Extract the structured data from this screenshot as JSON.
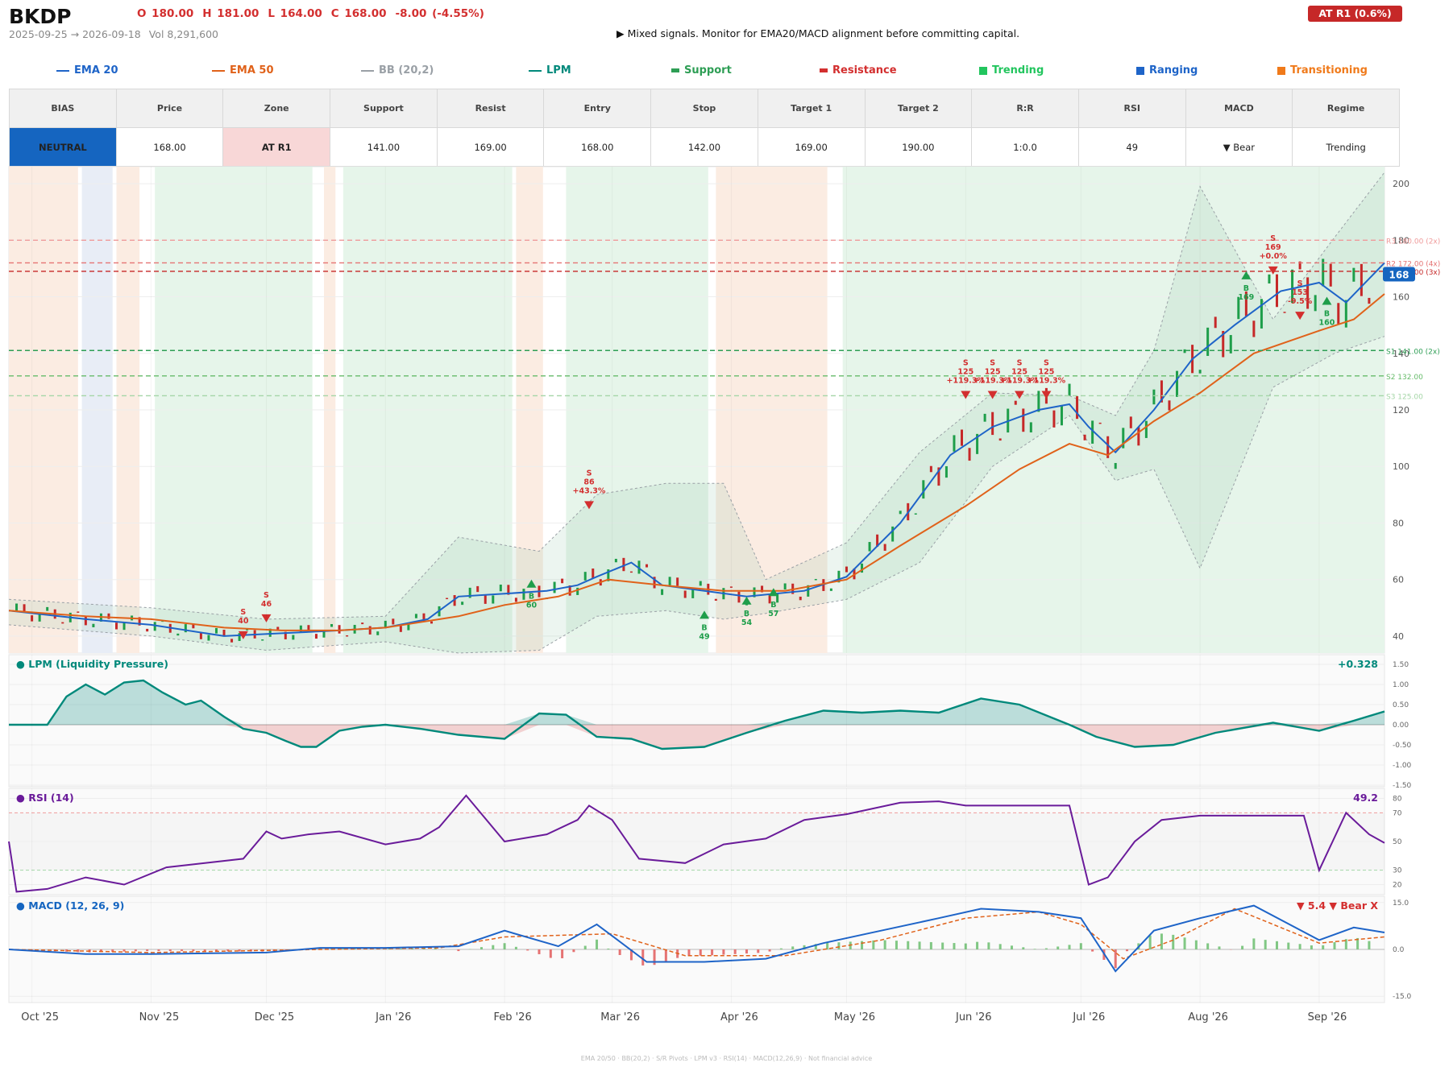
{
  "header": {
    "ticker": "BKDP",
    "ohlc": [
      "O 180.00",
      "H 181.00",
      "L 164.00",
      "C 168.00",
      "-8.00  (-4.55%)"
    ],
    "date_range": "2025-09-25 → 2026-09-18",
    "volume": "Vol 8,291,600",
    "headline": "▶  Mixed signals. Monitor for EMA20/MACD alignment before committing capital.",
    "badge": "AT R1  (0.6%)"
  },
  "legend": [
    {
      "label": "EMA 20",
      "color": "#1e64c8",
      "swatch": "line"
    },
    {
      "label": "EMA 50",
      "color": "#e0621a",
      "swatch": "line"
    },
    {
      "label": "BB (20,2)",
      "color": "#9aa0a6",
      "swatch": "line"
    },
    {
      "label": "LPM",
      "color": "#00897b",
      "swatch": "line"
    },
    {
      "label": "Support",
      "color": "#2e9e55",
      "swatch": "bar"
    },
    {
      "label": "Resistance",
      "color": "#d32f2f",
      "swatch": "bar"
    },
    {
      "label": "Trending",
      "color": "#22c55e",
      "swatch": "box"
    },
    {
      "label": "Ranging",
      "color": "#1e64c8",
      "swatch": "box"
    },
    {
      "label": "Transitioning",
      "color": "#f07a1a",
      "swatch": "box"
    }
  ],
  "metrics": {
    "headers": [
      "BIAS",
      "Price",
      "Zone",
      "Support",
      "Resist",
      "Entry",
      "Stop",
      "Target 1",
      "Target 2",
      "R:R",
      "RSI",
      "MACD",
      "Regime"
    ],
    "values": [
      "NEUTRAL",
      "168.00",
      "AT R1",
      "141.00",
      "169.00",
      "168.00",
      "142.00",
      "169.00",
      "190.00",
      "1:0.0",
      "49",
      "▼ Bear",
      "Trending"
    ]
  },
  "chart_data": [
    {
      "type": "candlestick",
      "x_axis": {
        "type": "date",
        "range": [
          "2025-09-25",
          "2026-09-18"
        ],
        "tick_labels": [
          "Oct '25",
          "Nov '25",
          "Dec '25",
          "Jan '26",
          "Feb '26",
          "Mar '26",
          "Apr '26",
          "May '26",
          "Jun '26",
          "Jul '26",
          "Aug '26",
          "Sep '26"
        ],
        "tick_dates": [
          "2025-10-01",
          "2025-11-01",
          "2025-12-01",
          "2026-01-01",
          "2026-02-01",
          "2026-03-01",
          "2026-04-01",
          "2026-05-01",
          "2026-06-01",
          "2026-07-01",
          "2026-08-01",
          "2026-09-01"
        ]
      },
      "y_axis": {
        "range": [
          34,
          206
        ],
        "ticks": [
          40,
          60,
          80,
          100,
          120,
          140,
          160,
          180,
          200
        ]
      },
      "last_price": 168,
      "last_price_label": "168",
      "levels": [
        {
          "label": "R3 180.00 (2x)",
          "value": 180,
          "color": "#ef9a9a",
          "style": "dashed"
        },
        {
          "label": "R2 172.00 (4x)",
          "value": 172,
          "color": "#e57373",
          "style": "dashed"
        },
        {
          "label": "R1 169.00 (3x)",
          "value": 169,
          "color": "#c62828",
          "style": "dashed"
        },
        {
          "label": "S1 141.00 (2x)",
          "value": 141,
          "color": "#2e9e55",
          "style": "dashed"
        },
        {
          "label": "S2 132.00",
          "value": 132,
          "color": "#66bb6a",
          "style": "dashed"
        },
        {
          "label": "S3 125.00",
          "value": 125,
          "color": "#a5d6a7",
          "style": "dashed"
        }
      ],
      "regimes": [
        {
          "start": "2025-09-25",
          "end": "2025-10-13",
          "regime": "Transitioning"
        },
        {
          "start": "2025-10-14",
          "end": "2025-10-22",
          "regime": "Ranging"
        },
        {
          "start": "2025-10-23",
          "end": "2025-10-29",
          "regime": "Transitioning"
        },
        {
          "start": "2025-11-02",
          "end": "2025-12-13",
          "regime": "Trending"
        },
        {
          "start": "2025-12-16",
          "end": "2025-12-19",
          "regime": "Transitioning"
        },
        {
          "start": "2025-12-21",
          "end": "2026-02-03",
          "regime": "Trending"
        },
        {
          "start": "2026-02-04",
          "end": "2026-02-11",
          "regime": "Transitioning"
        },
        {
          "start": "2026-02-17",
          "end": "2026-03-26",
          "regime": "Trending"
        },
        {
          "start": "2026-03-28",
          "end": "2026-04-26",
          "regime": "Transitioning"
        },
        {
          "start": "2026-04-30",
          "end": "2026-09-18",
          "regime": "Trending"
        }
      ],
      "series": [
        {
          "name": "EMA 20",
          "color": "#1e64c8",
          "x": [
            "2025-09-25",
            "2025-10-15",
            "2025-11-01",
            "2025-11-20",
            "2025-12-05",
            "2025-12-20",
            "2026-01-01",
            "2026-01-12",
            "2026-01-20",
            "2026-02-01",
            "2026-02-12",
            "2026-02-20",
            "2026-02-25",
            "2026-03-06",
            "2026-03-14",
            "2026-03-25",
            "2026-04-05",
            "2026-04-20",
            "2026-05-01",
            "2026-05-15",
            "2026-05-28",
            "2026-06-08",
            "2026-06-20",
            "2026-06-28",
            "2026-07-03",
            "2026-07-10",
            "2026-07-20",
            "2026-07-30",
            "2026-08-10",
            "2026-08-22",
            "2026-09-01",
            "2026-09-08",
            "2026-09-18"
          ],
          "values": [
            49,
            46,
            44,
            40,
            41,
            42,
            43,
            46,
            54,
            55,
            56,
            58,
            61,
            66,
            58,
            56,
            54,
            56,
            61,
            80,
            104,
            114,
            120,
            122,
            114,
            105,
            120,
            138,
            150,
            162,
            165,
            158,
            172
          ]
        },
        {
          "name": "EMA 50",
          "color": "#e0621a",
          "x": [
            "2025-09-25",
            "2025-10-15",
            "2025-11-01",
            "2025-11-20",
            "2025-12-05",
            "2025-12-20",
            "2026-01-01",
            "2026-01-20",
            "2026-02-01",
            "2026-02-15",
            "2026-02-28",
            "2026-03-14",
            "2026-03-30",
            "2026-04-15",
            "2026-05-01",
            "2026-05-15",
            "2026-06-01",
            "2026-06-15",
            "2026-06-28",
            "2026-07-08",
            "2026-07-20",
            "2026-08-01",
            "2026-08-15",
            "2026-09-01",
            "2026-09-10",
            "2026-09-18"
          ],
          "values": [
            49,
            47,
            46,
            43,
            42,
            42,
            43,
            47,
            51,
            54,
            60,
            58,
            56,
            56,
            60,
            72,
            86,
            99,
            108,
            104,
            116,
            126,
            140,
            148,
            152,
            161
          ]
        },
        {
          "name": "BB (20,2)",
          "color": "#9aa0a6",
          "type": "band",
          "x": [
            "2025-09-25",
            "2025-11-01",
            "2025-12-01",
            "2026-01-01",
            "2026-01-20",
            "2026-02-10",
            "2026-02-25",
            "2026-03-15",
            "2026-03-30",
            "2026-04-10",
            "2026-05-01",
            "2026-05-20",
            "2026-06-08",
            "2026-06-28",
            "2026-07-10",
            "2026-07-20",
            "2026-08-01",
            "2026-08-20",
            "2026-09-05",
            "2026-09-18"
          ],
          "upper": [
            53,
            50,
            46,
            47,
            75,
            70,
            90,
            94,
            94,
            60,
            73,
            105,
            126,
            125,
            118,
            141,
            199,
            152,
            181,
            204
          ],
          "lower": [
            44,
            40,
            35,
            38,
            34,
            35,
            47,
            49,
            46,
            48,
            53,
            66,
            100,
            118,
            95,
            99,
            64,
            128,
            140,
            146
          ]
        }
      ],
      "signals": [
        {
          "side": "S",
          "date": "2025-11-25",
          "price": 40,
          "label": "S\n40"
        },
        {
          "side": "S",
          "date": "2025-12-01",
          "price": 46,
          "label": "S\n46"
        },
        {
          "side": "B",
          "date": "2026-02-08",
          "price": 60,
          "label": "B\n60"
        },
        {
          "side": "S",
          "date": "2026-02-23",
          "price": 86,
          "label": "S\n86\n+43.3%"
        },
        {
          "side": "B",
          "date": "2026-03-25",
          "price": 49,
          "label": "B\n49"
        },
        {
          "side": "B",
          "date": "2026-04-05",
          "price": 54,
          "label": "B\n54"
        },
        {
          "side": "B",
          "date": "2026-04-12",
          "price": 57,
          "label": "B\n57"
        },
        {
          "side": "S",
          "date": "2026-06-01",
          "price": 125,
          "label": "S\n125\n+119.3%"
        },
        {
          "side": "S",
          "date": "2026-06-08",
          "price": 125,
          "label": "S\n125\n+119.3%"
        },
        {
          "side": "S",
          "date": "2026-06-15",
          "price": 125,
          "label": "S\n125\n+119.3%"
        },
        {
          "side": "S",
          "date": "2026-06-22",
          "price": 125,
          "label": "S\n125\n+119.3%"
        },
        {
          "side": "B",
          "date": "2026-08-13",
          "price": 169,
          "label": "B\n169"
        },
        {
          "side": "S",
          "date": "2026-08-20",
          "price": 169,
          "label": "S\n169\n+0.0%"
        },
        {
          "side": "S",
          "date": "2026-08-27",
          "price": 153,
          "label": "S\n153\n-9.5%"
        },
        {
          "side": "B",
          "date": "2026-09-03",
          "price": 160,
          "label": "B\n160"
        }
      ]
    },
    {
      "type": "area",
      "title": "LPM (Liquidity Pressure)",
      "value_label": "+0.328",
      "y_axis": {
        "range": [
          -1.5,
          1.5
        ],
        "ticks": [
          1.5,
          1.0,
          0.5,
          0.0,
          -0.5,
          -1.0,
          -1.5
        ]
      },
      "series": [
        {
          "name": "LPM",
          "color": "#00897b",
          "x": [
            "2025-09-25",
            "2025-10-05",
            "2025-10-10",
            "2025-10-15",
            "2025-10-20",
            "2025-10-25",
            "2025-10-30",
            "2025-11-04",
            "2025-11-10",
            "2025-11-14",
            "2025-11-20",
            "2025-11-25",
            "2025-12-01",
            "2025-12-06",
            "2025-12-10",
            "2025-12-14",
            "2025-12-20",
            "2025-12-26",
            "2026-01-01",
            "2026-01-10",
            "2026-01-20",
            "2026-02-01",
            "2026-02-10",
            "2026-02-17",
            "2026-02-25",
            "2026-03-06",
            "2026-03-14",
            "2026-03-25",
            "2026-04-05",
            "2026-04-15",
            "2026-04-25",
            "2026-05-05",
            "2026-05-15",
            "2026-05-25",
            "2026-06-05",
            "2026-06-15",
            "2026-06-28",
            "2026-07-05",
            "2026-07-15",
            "2026-07-25",
            "2026-08-05",
            "2026-08-20",
            "2026-09-01",
            "2026-09-10",
            "2026-09-18"
          ],
          "values": [
            0,
            0,
            0.7,
            1.0,
            0.75,
            1.05,
            1.1,
            0.8,
            0.5,
            0.6,
            0.2,
            -0.1,
            -0.2,
            -0.4,
            -0.55,
            -0.55,
            -0.15,
            -0.05,
            0,
            -0.1,
            -0.25,
            -0.35,
            0.28,
            0.25,
            -0.3,
            -0.35,
            -0.6,
            -0.55,
            -0.2,
            0.1,
            0.35,
            0.3,
            0.35,
            0.3,
            0.65,
            0.5,
            0.0,
            -0.3,
            -0.55,
            -0.5,
            -0.2,
            0.05,
            -0.15,
            0.1,
            0.33
          ]
        }
      ]
    },
    {
      "type": "line",
      "title": "RSI (14)",
      "value_label": "49.2",
      "y_axis": {
        "range": [
          13,
          87
        ],
        "ticks": [
          80,
          70,
          50,
          30,
          20
        ]
      },
      "bands": [
        70,
        30
      ],
      "series": [
        {
          "name": "RSI (14)",
          "color": "#6a1b9a",
          "x": [
            "2025-09-25",
            "2025-09-27",
            "2025-10-05",
            "2025-10-15",
            "2025-10-25",
            "2025-11-05",
            "2025-11-15",
            "2025-11-25",
            "2025-12-01",
            "2025-12-05",
            "2025-12-12",
            "2025-12-20",
            "2026-01-01",
            "2026-01-10",
            "2026-01-15",
            "2026-01-22",
            "2026-02-01",
            "2026-02-12",
            "2026-02-20",
            "2026-02-23",
            "2026-03-01",
            "2026-03-08",
            "2026-03-20",
            "2026-03-30",
            "2026-04-10",
            "2026-04-20",
            "2026-05-01",
            "2026-05-15",
            "2026-05-25",
            "2026-06-01",
            "2026-06-20",
            "2026-06-28",
            "2026-07-03",
            "2026-07-08",
            "2026-07-15",
            "2026-07-22",
            "2026-08-01",
            "2026-08-20",
            "2026-08-28",
            "2026-09-01",
            "2026-09-08",
            "2026-09-14",
            "2026-09-18"
          ],
          "values": [
            50,
            15,
            17,
            25,
            20,
            32,
            35,
            38,
            57,
            52,
            55,
            57,
            48,
            52,
            60,
            82,
            50,
            55,
            65,
            75,
            65,
            38,
            35,
            48,
            52,
            65,
            69,
            77,
            78,
            75,
            75,
            75,
            20,
            25,
            50,
            65,
            68,
            68,
            68,
            30,
            70,
            55,
            49
          ]
        }
      ]
    },
    {
      "type": "line",
      "title": "MACD (12, 26, 9)",
      "value_label": "▼ 5.4 ▼ Bear X",
      "y_axis": {
        "range": [
          -17,
          17
        ],
        "ticks": [
          15.0,
          0.0,
          -15.0
        ]
      },
      "series": [
        {
          "name": "MACD",
          "color": "#1e64c8",
          "x": [
            "2025-09-25",
            "2025-10-15",
            "2025-11-01",
            "2025-12-01",
            "2025-12-15",
            "2026-01-01",
            "2026-01-20",
            "2026-02-01",
            "2026-02-15",
            "2026-02-25",
            "2026-03-10",
            "2026-03-25",
            "2026-04-10",
            "2026-04-25",
            "2026-05-10",
            "2026-05-25",
            "2026-06-05",
            "2026-06-20",
            "2026-07-01",
            "2026-07-10",
            "2026-07-20",
            "2026-08-01",
            "2026-08-15",
            "2026-09-01",
            "2026-09-10",
            "2026-09-18"
          ],
          "values": [
            0,
            -1.5,
            -1.5,
            -1,
            0.5,
            0.5,
            1,
            6,
            1,
            8,
            -4,
            -4,
            -3,
            2,
            6,
            10,
            13,
            12,
            10,
            -7,
            6,
            10,
            14,
            3,
            7,
            5.4
          ]
        },
        {
          "name": "Signal",
          "color": "#e0621a",
          "x": [
            "2025-09-25",
            "2025-11-01",
            "2025-12-15",
            "2026-01-15",
            "2026-02-01",
            "2026-03-01",
            "2026-03-20",
            "2026-04-15",
            "2026-05-10",
            "2026-06-01",
            "2026-06-20",
            "2026-07-01",
            "2026-07-12",
            "2026-07-25",
            "2026-08-10",
            "2026-09-01",
            "2026-09-18"
          ],
          "values": [
            0,
            -1,
            0,
            0.5,
            4,
            5,
            -2,
            -2,
            3,
            10,
            12,
            8,
            -3,
            3,
            13,
            2,
            4
          ]
        }
      ]
    }
  ],
  "footer": "EMA 20/50  ·  BB(20,2)  ·  S/R Pivots  ·  LPM v3  ·  RSI(14)  ·  MACD(12,26,9)  ·  Not financial advice"
}
